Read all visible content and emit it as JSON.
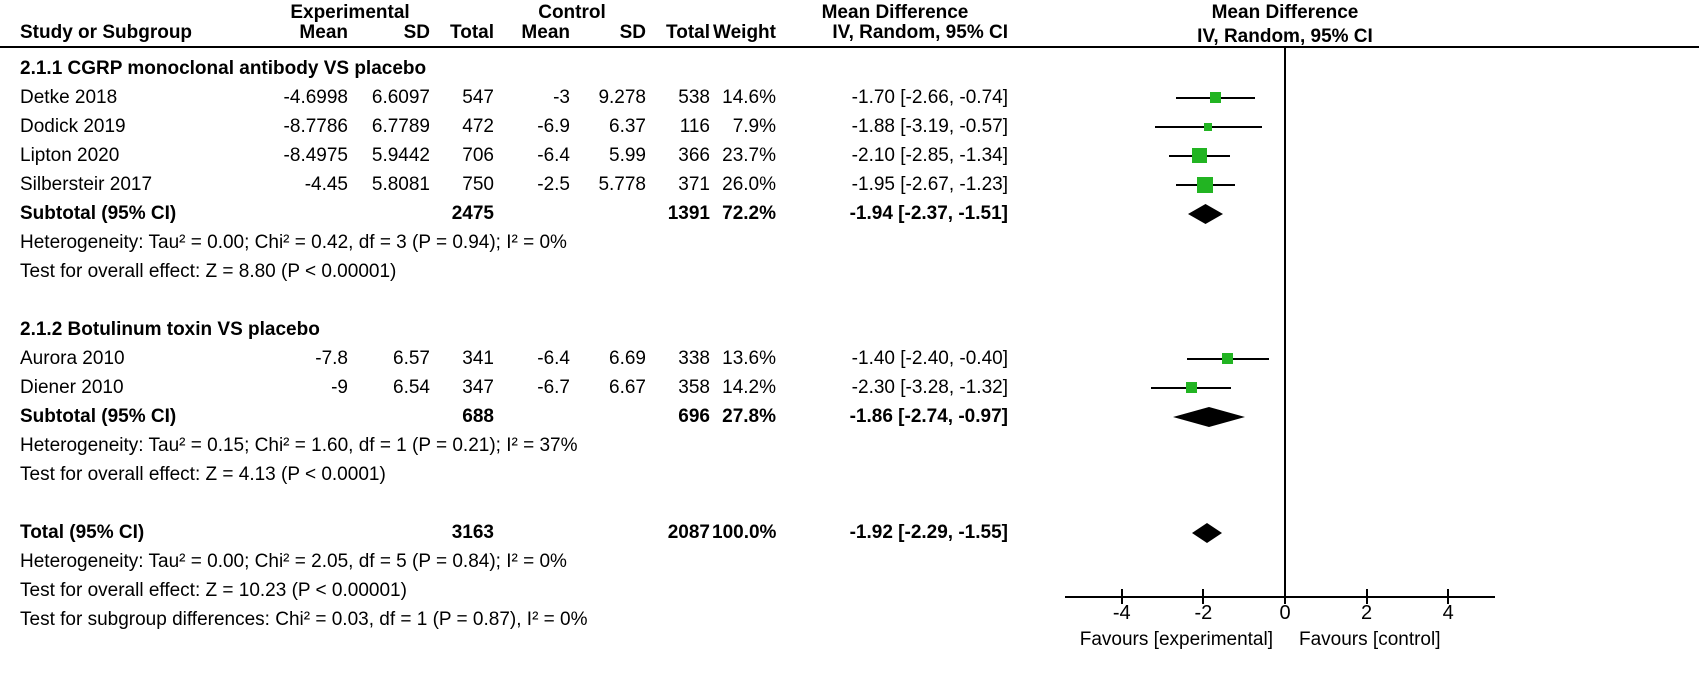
{
  "header": {
    "experimental": "Experimental",
    "control": "Control",
    "mean_difference_col": "Mean Difference",
    "mean_difference_plot": "Mean Difference",
    "study": "Study or Subgroup",
    "mean": "Mean",
    "sd": "SD",
    "total": "Total",
    "weight": "Weight",
    "ci": "IV, Random, 95% CI",
    "ci_plot": "IV, Random, 95% CI"
  },
  "groups": [
    {
      "title": "2.1.1 CGRP monoclonal antibody VS placebo",
      "studies": [
        {
          "name": "Detke 2018",
          "exp_mean": "-4.6998",
          "exp_sd": "6.6097",
          "exp_total": "547",
          "ctl_mean": "-3",
          "ctl_sd": "9.278",
          "ctl_total": "538",
          "weight": "14.6%",
          "ci_text": "-1.70 [-2.66, -0.74]",
          "md": -1.7,
          "lo": -2.66,
          "hi": -0.74
        },
        {
          "name": "Dodick 2019",
          "exp_mean": "-8.7786",
          "exp_sd": "6.7789",
          "exp_total": "472",
          "ctl_mean": "-6.9",
          "ctl_sd": "6.37",
          "ctl_total": "116",
          "weight": "7.9%",
          "ci_text": "-1.88 [-3.19, -0.57]",
          "md": -1.88,
          "lo": -3.19,
          "hi": -0.57
        },
        {
          "name": "Lipton 2020",
          "exp_mean": "-8.4975",
          "exp_sd": "5.9442",
          "exp_total": "706",
          "ctl_mean": "-6.4",
          "ctl_sd": "5.99",
          "ctl_total": "366",
          "weight": "23.7%",
          "ci_text": "-2.10 [-2.85, -1.34]",
          "md": -2.1,
          "lo": -2.85,
          "hi": -1.34
        },
        {
          "name": "Silbersteir 2017",
          "exp_mean": "-4.45",
          "exp_sd": "5.8081",
          "exp_total": "750",
          "ctl_mean": "-2.5",
          "ctl_sd": "5.778",
          "ctl_total": "371",
          "weight": "26.0%",
          "ci_text": "-1.95 [-2.67, -1.23]",
          "md": -1.95,
          "lo": -2.67,
          "hi": -1.23
        }
      ],
      "subtotal": {
        "label": "Subtotal (95% CI)",
        "exp_total": "2475",
        "ctl_total": "1391",
        "weight": "72.2%",
        "ci_text": "-1.94 [-2.37, -1.51]",
        "md": -1.94,
        "lo": -2.37,
        "hi": -1.51
      },
      "heterogeneity": "Heterogeneity: Tau² = 0.00; Chi² = 0.42, df = 3 (P = 0.94); I² = 0%",
      "overall_effect": "Test for overall effect: Z = 8.80 (P < 0.00001)"
    },
    {
      "title": "2.1.2 Botulinum toxin VS placebo",
      "studies": [
        {
          "name": "Aurora 2010",
          "exp_mean": "-7.8",
          "exp_sd": "6.57",
          "exp_total": "341",
          "ctl_mean": "-6.4",
          "ctl_sd": "6.69",
          "ctl_total": "338",
          "weight": "13.6%",
          "ci_text": "-1.40 [-2.40, -0.40]",
          "md": -1.4,
          "lo": -2.4,
          "hi": -0.4
        },
        {
          "name": "Diener 2010",
          "exp_mean": "-9",
          "exp_sd": "6.54",
          "exp_total": "347",
          "ctl_mean": "-6.7",
          "ctl_sd": "6.67",
          "ctl_total": "358",
          "weight": "14.2%",
          "ci_text": "-2.30 [-3.28, -1.32]",
          "md": -2.3,
          "lo": -3.28,
          "hi": -1.32
        }
      ],
      "subtotal": {
        "label": "Subtotal (95% CI)",
        "exp_total": "688",
        "ctl_total": "696",
        "weight": "27.8%",
        "ci_text": "-1.86 [-2.74, -0.97]",
        "md": -1.86,
        "lo": -2.74,
        "hi": -0.97
      },
      "heterogeneity": "Heterogeneity: Tau² = 0.15; Chi² = 1.60, df = 1 (P = 0.21); I² = 37%",
      "overall_effect": "Test for overall effect: Z = 4.13 (P < 0.0001)"
    }
  ],
  "total_row": {
    "label": "Total (95% CI)",
    "exp_total": "3163",
    "ctl_total": "2087",
    "weight": "100.0%",
    "ci_text": "-1.92 [-2.29, -1.55]",
    "md": -1.92,
    "lo": -2.29,
    "hi": -1.55
  },
  "footer": {
    "heterogeneity": "Heterogeneity: Tau² = 0.00; Chi² = 2.05, df = 5 (P = 0.84); I² = 0%",
    "overall_effect": "Test for overall effect: Z = 10.23 (P < 0.00001)",
    "subgroup_differences": "Test for subgroup differences: Chi² = 0.03, df = 1 (P = 0.87), I² = 0%"
  },
  "axis": {
    "ticks": [
      -4,
      -2,
      0,
      2,
      4
    ],
    "favours_left": "Favours [experimental]",
    "favours_right": "Favours [control]"
  },
  "colors": {
    "marker_green": "#22b422",
    "ink": "#000000"
  },
  "chart_data": {
    "type": "forest",
    "effect_measure": "Mean Difference, IV, Random, 95% CI",
    "xticks": [
      -4,
      -2,
      0,
      2,
      4
    ],
    "xlim": [
      -5.4,
      5.2
    ],
    "axis_label_left": "Favours [experimental]",
    "axis_label_right": "Favours [control]",
    "subgroups": [
      {
        "name": "2.1.1 CGRP monoclonal antibody VS placebo",
        "studies": [
          {
            "study": "Detke 2018",
            "exp_mean": -4.6998,
            "exp_sd": 6.6097,
            "exp_total": 547,
            "ctl_mean": -3,
            "ctl_sd": 9.278,
            "ctl_total": 538,
            "weight_pct": 14.6,
            "md": -1.7,
            "ci": [
              -2.66,
              -0.74
            ]
          },
          {
            "study": "Dodick 2019",
            "exp_mean": -8.7786,
            "exp_sd": 6.7789,
            "exp_total": 472,
            "ctl_mean": -6.9,
            "ctl_sd": 6.37,
            "ctl_total": 116,
            "weight_pct": 7.9,
            "md": -1.88,
            "ci": [
              -3.19,
              -0.57
            ]
          },
          {
            "study": "Lipton 2020",
            "exp_mean": -8.4975,
            "exp_sd": 5.9442,
            "exp_total": 706,
            "ctl_mean": -6.4,
            "ctl_sd": 5.99,
            "ctl_total": 366,
            "weight_pct": 23.7,
            "md": -2.1,
            "ci": [
              -2.85,
              -1.34
            ]
          },
          {
            "study": "Silbersteir 2017",
            "exp_mean": -4.45,
            "exp_sd": 5.8081,
            "exp_total": 750,
            "ctl_mean": -2.5,
            "ctl_sd": 5.778,
            "ctl_total": 371,
            "weight_pct": 26.0,
            "md": -1.95,
            "ci": [
              -2.67,
              -1.23
            ]
          }
        ],
        "subtotal": {
          "exp_total": 2475,
          "ctl_total": 1391,
          "weight_pct": 72.2,
          "md": -1.94,
          "ci": [
            -2.37,
            -1.51
          ]
        },
        "heterogeneity": {
          "tau2": 0.0,
          "chi2": 0.42,
          "df": 3,
          "p": 0.94,
          "i2_pct": 0
        },
        "overall_effect": {
          "z": 8.8,
          "p": "< 0.00001"
        }
      },
      {
        "name": "2.1.2 Botulinum toxin VS placebo",
        "studies": [
          {
            "study": "Aurora 2010",
            "exp_mean": -7.8,
            "exp_sd": 6.57,
            "exp_total": 341,
            "ctl_mean": -6.4,
            "ctl_sd": 6.69,
            "ctl_total": 338,
            "weight_pct": 13.6,
            "md": -1.4,
            "ci": [
              -2.4,
              -0.4
            ]
          },
          {
            "study": "Diener 2010",
            "exp_mean": -9,
            "exp_sd": 6.54,
            "exp_total": 347,
            "ctl_mean": -6.7,
            "ctl_sd": 6.67,
            "ctl_total": 358,
            "weight_pct": 14.2,
            "md": -2.3,
            "ci": [
              -3.28,
              -1.32
            ]
          }
        ],
        "subtotal": {
          "exp_total": 688,
          "ctl_total": 696,
          "weight_pct": 27.8,
          "md": -1.86,
          "ci": [
            -2.74,
            -0.97
          ]
        },
        "heterogeneity": {
          "tau2": 0.15,
          "chi2": 1.6,
          "df": 1,
          "p": 0.21,
          "i2_pct": 37
        },
        "overall_effect": {
          "z": 4.13,
          "p": "< 0.0001"
        }
      }
    ],
    "total": {
      "exp_total": 3163,
      "ctl_total": 2087,
      "weight_pct": 100.0,
      "md": -1.92,
      "ci": [
        -2.29,
        -1.55
      ]
    },
    "total_heterogeneity": {
      "tau2": 0.0,
      "chi2": 2.05,
      "df": 5,
      "p": 0.84,
      "i2_pct": 0
    },
    "total_overall_effect": {
      "z": 10.23,
      "p": "< 0.00001"
    },
    "subgroup_differences": {
      "chi2": 0.03,
      "df": 1,
      "p": 0.87,
      "i2_pct": 0
    }
  }
}
